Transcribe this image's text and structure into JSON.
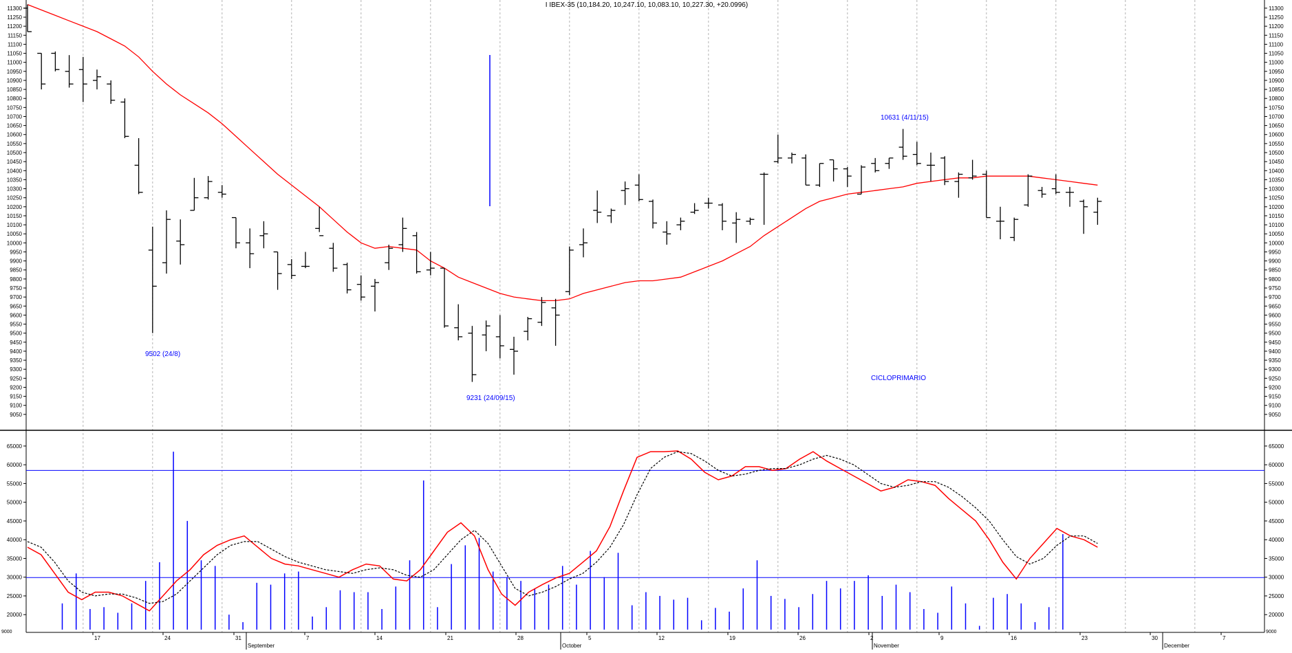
{
  "chart_data": {
    "title": "I IBEX-35 (10,184.20, 10,247.10, 10,083.10, 10,227.30, +20.0996)",
    "colors": {
      "bars": "#000000",
      "moving_average": "#ff0000",
      "annotation": "#0000ff",
      "volume": "#0000ff",
      "oscillator": "#ff0000",
      "signal": "#000000",
      "grid": "#b4b4b4"
    },
    "price_panel": {
      "type": "ohlc",
      "ylim": [
        9000,
        11330
      ],
      "yticks": [
        9050,
        9100,
        9150,
        9200,
        9250,
        9300,
        9350,
        9400,
        9450,
        9500,
        9550,
        9600,
        9650,
        9700,
        9750,
        9800,
        9850,
        9900,
        9950,
        10000,
        10050,
        10100,
        10150,
        10200,
        10250,
        10300,
        10350,
        10400,
        10450,
        10500,
        10550,
        10600,
        10650,
        10700,
        10750,
        10800,
        10850,
        10900,
        10950,
        11000,
        11050,
        11100,
        11150,
        11200,
        11250,
        11300
      ],
      "bars": [
        {
          "o": 11300,
          "h": 11320,
          "l": 11170,
          "c": 11170
        },
        {
          "o": 11050,
          "h": 11050,
          "l": 10850,
          "c": 10880
        },
        {
          "o": 11050,
          "h": 11060,
          "l": 10950,
          "c": 10960
        },
        {
          "o": 10950,
          "h": 11040,
          "l": 10860,
          "c": 10880
        },
        {
          "o": 10960,
          "h": 11030,
          "l": 10780,
          "c": 10880
        },
        {
          "o": 10900,
          "h": 10960,
          "l": 10850,
          "c": 10920
        },
        {
          "o": 10880,
          "h": 10900,
          "l": 10770,
          "c": 10790
        },
        {
          "o": 10780,
          "h": 10800,
          "l": 10580,
          "c": 10590
        },
        {
          "o": 10430,
          "h": 10580,
          "l": 10270,
          "c": 10280
        },
        {
          "o": 9960,
          "h": 10090,
          "l": 9500,
          "c": 9760
        },
        {
          "o": 9890,
          "h": 10180,
          "l": 9830,
          "c": 10130
        },
        {
          "o": 10010,
          "h": 10130,
          "l": 9880,
          "c": 9990
        },
        {
          "o": 10180,
          "h": 10360,
          "l": 10180,
          "c": 10250
        },
        {
          "o": 10250,
          "h": 10370,
          "l": 10240,
          "c": 10340
        },
        {
          "o": 10280,
          "h": 10320,
          "l": 10250,
          "c": 10270
        },
        {
          "o": 10140,
          "h": 10140,
          "l": 9970,
          "c": 10000
        },
        {
          "o": 10000,
          "h": 10080,
          "l": 9860,
          "c": 9940
        },
        {
          "o": 10040,
          "h": 10120,
          "l": 9970,
          "c": 10050
        },
        {
          "o": 9950,
          "h": 9950,
          "l": 9740,
          "c": 9830
        },
        {
          "o": 9880,
          "h": 9910,
          "l": 9800,
          "c": 9820
        },
        {
          "o": 9870,
          "h": 9950,
          "l": 9860,
          "c": 9870
        },
        {
          "o": 10080,
          "h": 10200,
          "l": 10060,
          "c": 10040
        },
        {
          "o": 9970,
          "h": 10000,
          "l": 9840,
          "c": 9860
        },
        {
          "o": 9880,
          "h": 9890,
          "l": 9720,
          "c": 9740
        },
        {
          "o": 9770,
          "h": 9820,
          "l": 9680,
          "c": 9700
        },
        {
          "o": 9760,
          "h": 9800,
          "l": 9620,
          "c": 9780
        },
        {
          "o": 9890,
          "h": 9990,
          "l": 9850,
          "c": 9970
        },
        {
          "o": 9990,
          "h": 10140,
          "l": 9950,
          "c": 10080
        },
        {
          "o": 10040,
          "h": 10060,
          "l": 9830,
          "c": 9840
        },
        {
          "o": 9850,
          "h": 9950,
          "l": 9820,
          "c": 9860
        },
        {
          "o": 9860,
          "h": 9860,
          "l": 9530,
          "c": 9540
        },
        {
          "o": 9530,
          "h": 9660,
          "l": 9460,
          "c": 9480
        },
        {
          "o": 9500,
          "h": 9540,
          "l": 9230,
          "c": 9270
        },
        {
          "o": 9490,
          "h": 9570,
          "l": 9400,
          "c": 9540
        },
        {
          "o": 9480,
          "h": 9600,
          "l": 9360,
          "c": 9430
        },
        {
          "o": 9410,
          "h": 9480,
          "l": 9270,
          "c": 9400
        },
        {
          "o": 9510,
          "h": 9590,
          "l": 9460,
          "c": 9580
        },
        {
          "o": 9560,
          "h": 9700,
          "l": 9540,
          "c": 9670
        },
        {
          "o": 9640,
          "h": 9690,
          "l": 9430,
          "c": 9600
        },
        {
          "o": 9730,
          "h": 9980,
          "l": 9710,
          "c": 9960
        },
        {
          "o": 9990,
          "h": 10080,
          "l": 9920,
          "c": 10000
        },
        {
          "o": 10180,
          "h": 10290,
          "l": 10110,
          "c": 10170
        },
        {
          "o": 10150,
          "h": 10190,
          "l": 10110,
          "c": 10180
        },
        {
          "o": 10290,
          "h": 10340,
          "l": 10210,
          "c": 10300
        },
        {
          "o": 10320,
          "h": 10380,
          "l": 10230,
          "c": 10240
        },
        {
          "o": 10230,
          "h": 10240,
          "l": 10080,
          "c": 10110
        },
        {
          "o": 10060,
          "h": 10120,
          "l": 9990,
          "c": 10050
        },
        {
          "o": 10100,
          "h": 10140,
          "l": 10070,
          "c": 10120
        },
        {
          "o": 10170,
          "h": 10220,
          "l": 10160,
          "c": 10180
        },
        {
          "o": 10220,
          "h": 10250,
          "l": 10190,
          "c": 10220
        },
        {
          "o": 10210,
          "h": 10220,
          "l": 10070,
          "c": 10120
        },
        {
          "o": 10110,
          "h": 10170,
          "l": 10000,
          "c": 10130
        },
        {
          "o": 10120,
          "h": 10140,
          "l": 10100,
          "c": 10130
        },
        {
          "o": 10380,
          "h": 10390,
          "l": 10100,
          "c": 10380
        },
        {
          "o": 10450,
          "h": 10600,
          "l": 10440,
          "c": 10470
        },
        {
          "o": 10470,
          "h": 10500,
          "l": 10440,
          "c": 10490
        },
        {
          "o": 10470,
          "h": 10490,
          "l": 10320,
          "c": 10320
        },
        {
          "o": 10320,
          "h": 10440,
          "l": 10310,
          "c": 10440
        },
        {
          "o": 10460,
          "h": 10460,
          "l": 10340,
          "c": 10410
        },
        {
          "o": 10410,
          "h": 10420,
          "l": 10310,
          "c": 10370
        },
        {
          "o": 10270,
          "h": 10430,
          "l": 10270,
          "c": 10420
        },
        {
          "o": 10440,
          "h": 10470,
          "l": 10390,
          "c": 10400
        },
        {
          "o": 10440,
          "h": 10470,
          "l": 10410,
          "c": 10470
        },
        {
          "o": 10530,
          "h": 10631,
          "l": 10460,
          "c": 10480
        },
        {
          "o": 10490,
          "h": 10560,
          "l": 10430,
          "c": 10440
        },
        {
          "o": 10430,
          "h": 10500,
          "l": 10340,
          "c": 10430
        },
        {
          "o": 10470,
          "h": 10480,
          "l": 10320,
          "c": 10340
        },
        {
          "o": 10340,
          "h": 10390,
          "l": 10250,
          "c": 10380
        },
        {
          "o": 10360,
          "h": 10460,
          "l": 10350,
          "c": 10370
        },
        {
          "o": 10380,
          "h": 10400,
          "l": 10140,
          "c": 10140
        },
        {
          "o": 10120,
          "h": 10200,
          "l": 10020,
          "c": 10120
        },
        {
          "o": 10030,
          "h": 10140,
          "l": 10010,
          "c": 10130
        },
        {
          "o": 10210,
          "h": 10380,
          "l": 10200,
          "c": 10370
        },
        {
          "o": 10290,
          "h": 10310,
          "l": 10250,
          "c": 10270
        },
        {
          "o": 10300,
          "h": 10380,
          "l": 10270,
          "c": 10280
        },
        {
          "o": 10280,
          "h": 10310,
          "l": 10200,
          "c": 10280
        },
        {
          "o": 10230,
          "h": 10240,
          "l": 10050,
          "c": 10200
        },
        {
          "o": 10170,
          "h": 10250,
          "l": 10100,
          "c": 10230
        }
      ],
      "moving_average": [
        11320,
        11290,
        11260,
        11230,
        11200,
        11170,
        11130,
        11090,
        11030,
        10950,
        10880,
        10820,
        10770,
        10720,
        10660,
        10590,
        10520,
        10450,
        10380,
        10320,
        10260,
        10200,
        10130,
        10060,
        10000,
        9970,
        9980,
        9970,
        9960,
        9900,
        9860,
        9810,
        9780,
        9750,
        9720,
        9700,
        9690,
        9680,
        9680,
        9690,
        9720,
        9740,
        9760,
        9780,
        9790,
        9790,
        9800,
        9810,
        9840,
        9870,
        9900,
        9940,
        9980,
        10040,
        10090,
        10140,
        10190,
        10230,
        10250,
        10270,
        10280,
        10290,
        10300,
        10310,
        10330,
        10340,
        10350,
        10360,
        10360,
        10370,
        10370,
        10370,
        10370,
        10360,
        10350,
        10340,
        10330,
        10320
      ],
      "annotations": [
        {
          "text": "9502 (24/8)"
        },
        {
          "text": "9231 (24/09/15)"
        },
        {
          "text": "10631 (4/11/15)"
        },
        {
          "text": "CICLOPRIMARIO"
        }
      ]
    },
    "lower_panel": {
      "ylim": [
        16000,
        67000
      ],
      "yticks": [
        20000,
        25000,
        30000,
        35000,
        40000,
        45000,
        50000,
        55000,
        60000,
        65000
      ],
      "hlines": [
        58500,
        29900
      ],
      "volume": [
        23000,
        31000,
        21500,
        22000,
        20500,
        23000,
        29000,
        34000,
        63500,
        45000,
        34500,
        33000,
        20000,
        18000,
        28500,
        28000,
        31000,
        31500,
        19500,
        22000,
        26500,
        26000,
        26000,
        21500,
        27500,
        34500,
        55800,
        22000,
        33500,
        38500,
        40500,
        31500,
        30000,
        29000,
        27000,
        28000,
        33000,
        28000,
        37000,
        30000,
        36500,
        22500,
        26000,
        25000,
        24000,
        24500,
        18500,
        21800,
        20800,
        27000,
        34500,
        25000,
        24200,
        22000,
        25500,
        29000,
        27000,
        29000,
        30500,
        25000,
        28000,
        26000,
        21500,
        20500,
        27500,
        23000,
        17000,
        24500,
        25500,
        23000,
        18000,
        22000,
        41500
      ],
      "oscillator": [
        38000,
        36000,
        31000,
        26000,
        24000,
        26000,
        26000,
        25000,
        23000,
        21000,
        25000,
        29000,
        32000,
        36000,
        38500,
        40000,
        41000,
        38000,
        35000,
        33500,
        33000,
        32000,
        31000,
        30000,
        32000,
        33500,
        33000,
        29500,
        29000,
        32000,
        37000,
        42000,
        44500,
        41000,
        32000,
        25500,
        22500,
        26000,
        28000,
        29800,
        31000,
        34000,
        37000,
        43500,
        53000,
        62000,
        63500,
        63500,
        63700,
        61500,
        58000,
        56000,
        57000,
        59500,
        59500,
        58500,
        59000,
        61500,
        63500,
        61000,
        59000,
        57000,
        55000,
        53000,
        54000,
        56000,
        55500,
        54500,
        51000,
        48000,
        45000,
        40000,
        34000,
        29500,
        35000,
        39000,
        43000,
        41000,
        40000,
        38000
      ],
      "signal": [
        39500,
        38000,
        34000,
        29000,
        26000,
        25000,
        25500,
        25500,
        24500,
        23000,
        23500,
        25500,
        29000,
        32500,
        36000,
        38500,
        39500,
        39500,
        37500,
        35500,
        34000,
        33000,
        32000,
        31500,
        31000,
        32000,
        32500,
        32000,
        30500,
        30000,
        32000,
        36000,
        40000,
        42500,
        39000,
        33000,
        27000,
        25000,
        26000,
        27500,
        29500,
        31000,
        34000,
        38000,
        44000,
        52000,
        59000,
        62000,
        63500,
        63000,
        61000,
        58500,
        57000,
        57500,
        58500,
        59000,
        59000,
        60000,
        61500,
        62500,
        61500,
        60000,
        57500,
        55000,
        54000,
        54500,
        55500,
        55500,
        54000,
        51500,
        48500,
        45000,
        40000,
        35500,
        33500,
        35000,
        38500,
        41000,
        41000,
        39000
      ]
    },
    "x_axis": {
      "day_labels": [
        "17",
        "24",
        "31",
        "7",
        "14",
        "21",
        "28",
        "5",
        "12",
        "19",
        "26",
        "2",
        "9",
        "16",
        "23",
        "30",
        "7"
      ],
      "month_labels": [
        "September",
        "October",
        "November",
        "December"
      ],
      "left_corner_label": "9000",
      "right_corner_label": "9000"
    }
  }
}
